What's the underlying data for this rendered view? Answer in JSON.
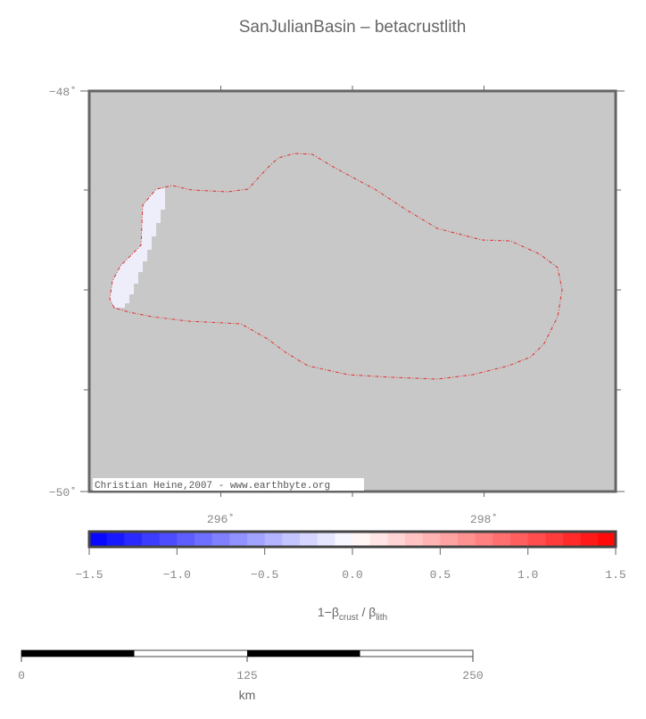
{
  "map": {
    "title": "SanJulianBasin – betacrustlith",
    "lon_ticks": [
      {
        "value": 296,
        "label": "296˚"
      },
      {
        "value": 298,
        "label": "298˚"
      }
    ],
    "lat_ticks": [
      {
        "value": -48,
        "label": "−48˚"
      },
      {
        "value": -50,
        "label": "−50˚"
      }
    ],
    "credit": "Christian Heine,2007 - www.earthbyte.org"
  },
  "colorbar": {
    "ticks": [
      {
        "value": -1.5,
        "label": "−1.5"
      },
      {
        "value": -1.0,
        "label": "−1.0"
      },
      {
        "value": -0.5,
        "label": "−0.5"
      },
      {
        "value": 0,
        "label": "0.0"
      },
      {
        "value": 0.5,
        "label": "0.5"
      },
      {
        "value": 1.0,
        "label": "1.0"
      },
      {
        "value": 1.5,
        "label": "1.5"
      }
    ],
    "label": {
      "main": "1−β",
      "sub1": "crust",
      "mid": " / β",
      "sub2": "lith"
    }
  },
  "scalebar": {
    "ticks": [
      0,
      125,
      250
    ],
    "unit": "km"
  }
}
